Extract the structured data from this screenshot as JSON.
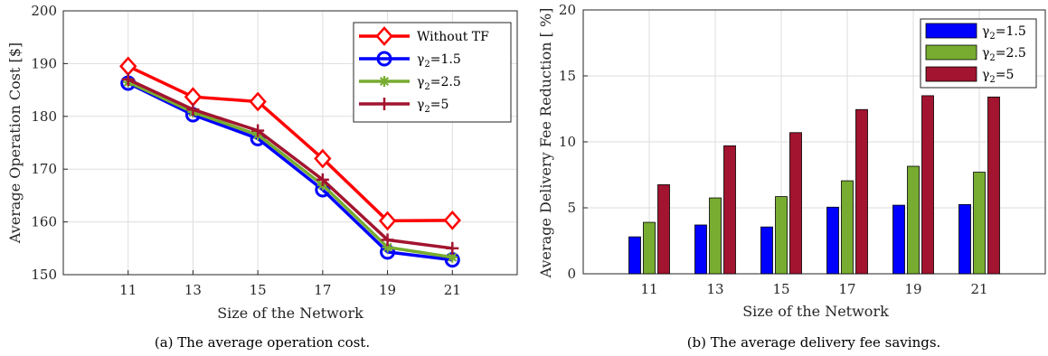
{
  "chart_data": [
    {
      "type": "line",
      "xlabel": "Size of the Network",
      "ylabel": "Average Operation Cost [$]",
      "caption": "(a) The average operation cost.",
      "x": [
        11,
        13,
        15,
        17,
        19,
        21
      ],
      "xlim": [
        9,
        23
      ],
      "ylim": [
        150,
        200
      ],
      "yticks": [
        150,
        160,
        170,
        180,
        190,
        200
      ],
      "grid": true,
      "legend_position": "top-right",
      "series": [
        {
          "name": "Without TF",
          "color": "#ff0000",
          "marker": "diamond",
          "values": [
            189.5,
            183.7,
            182.8,
            172.0,
            160.2,
            160.3
          ]
        },
        {
          "name": "γ2=1.5",
          "color": "#0000ff",
          "marker": "circle",
          "values": [
            186.3,
            180.3,
            175.8,
            166.1,
            154.3,
            152.8
          ]
        },
        {
          "name": "γ2=2.5",
          "color": "#77ac30",
          "marker": "asterisk",
          "values": [
            186.5,
            180.8,
            176.5,
            167.0,
            155.2,
            153.3
          ]
        },
        {
          "name": "γ2=5",
          "color": "#a2142f",
          "marker": "plus",
          "values": [
            187.0,
            181.3,
            177.3,
            168.0,
            156.6,
            155.0
          ]
        }
      ]
    },
    {
      "type": "bar",
      "xlabel": "Size of the Network",
      "ylabel": "Average Delivery Fee Reduction [ %]",
      "caption": "(b) The average delivery fee savings.",
      "categories": [
        "11",
        "13",
        "15",
        "17",
        "19",
        "21"
      ],
      "ylim": [
        0,
        20
      ],
      "yticks": [
        0,
        5,
        10,
        15,
        20
      ],
      "grid": true,
      "legend_position": "top-right",
      "series": [
        {
          "name": "γ2=1.5",
          "color": "#0000ff",
          "values": [
            2.8,
            3.7,
            3.55,
            5.05,
            5.2,
            5.25
          ]
        },
        {
          "name": "γ2=2.5",
          "color": "#77ac30",
          "values": [
            3.9,
            5.75,
            5.85,
            7.05,
            8.15,
            7.7
          ]
        },
        {
          "name": "γ2=5",
          "color": "#a2142f",
          "values": [
            6.75,
            9.7,
            10.7,
            12.45,
            13.5,
            13.4
          ]
        }
      ]
    }
  ]
}
